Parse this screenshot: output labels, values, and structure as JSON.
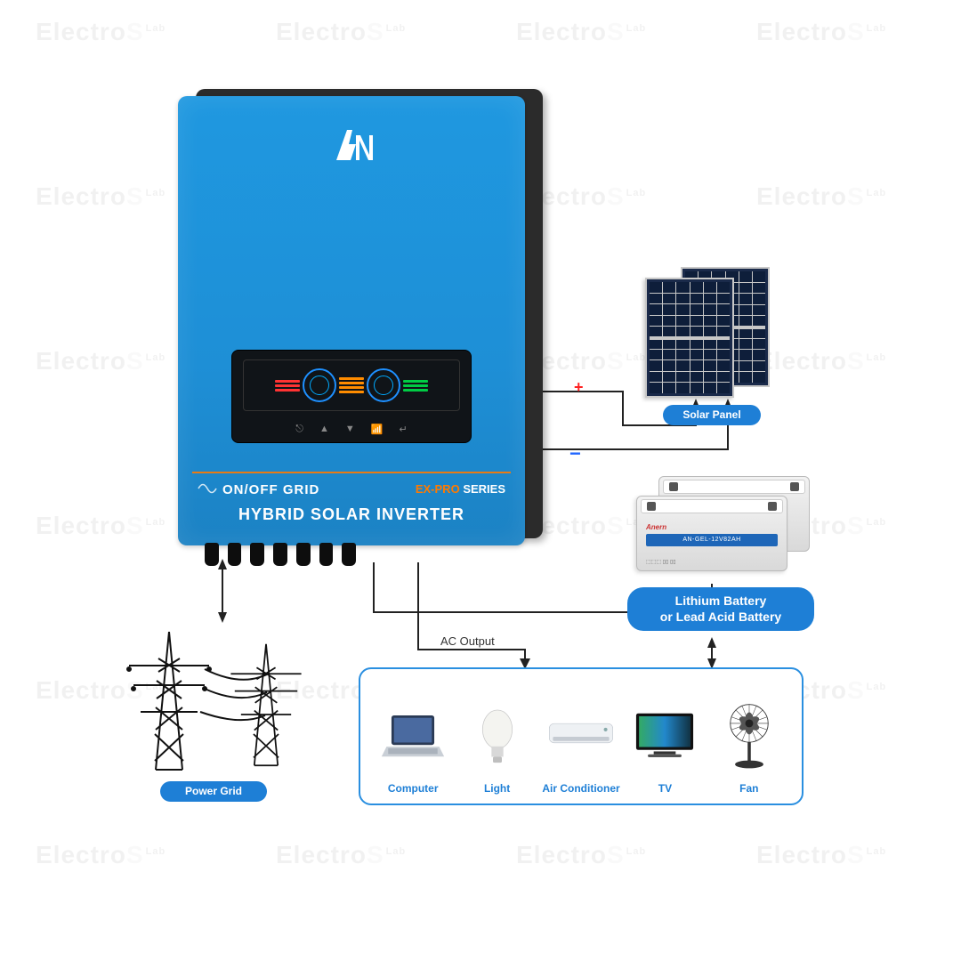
{
  "watermark": {
    "text": "Electro",
    "accent": "S",
    "suffix": "Lab",
    "rows": 6,
    "cols": 4,
    "opacity": 0.07
  },
  "inverter": {
    "brand_logo": "AN",
    "on_off_label": "ON/OFF GRID",
    "series_prefix": "EX-PRO",
    "series_suffix": "SERIES",
    "hybrid_label": "HYBRID SOLAR INVERTER",
    "body_color": "#1e8fd6",
    "back_color": "#2b2b2b",
    "accent_color": "#ff7a00",
    "screen_btns": [
      "⎋",
      "▲",
      "▼",
      "📶",
      "↵"
    ]
  },
  "solar": {
    "label": "Solar Panel",
    "panel_color": "#0e1e3a",
    "frame_color": "#c8c8c8"
  },
  "battery": {
    "label_line1": "Lithium Battery",
    "label_line2": "or Lead Acid Battery",
    "brand": "Anern",
    "model": "AN-GEL-12V82AH"
  },
  "power_grid": {
    "label": "Power Grid"
  },
  "ac_output_label": "AC Output",
  "polarity": {
    "plus": "+",
    "minus": "−"
  },
  "loads": {
    "border_color": "#2a8fe0",
    "items": [
      {
        "name": "Computer"
      },
      {
        "name": "Light"
      },
      {
        "name": "Air Conditioner"
      },
      {
        "name": "TV"
      },
      {
        "name": "Fan"
      }
    ]
  },
  "colors": {
    "pill_bg": "#1e7fd6",
    "wire": "#222222",
    "pos": "#ff2222",
    "neg": "#2266ff"
  }
}
